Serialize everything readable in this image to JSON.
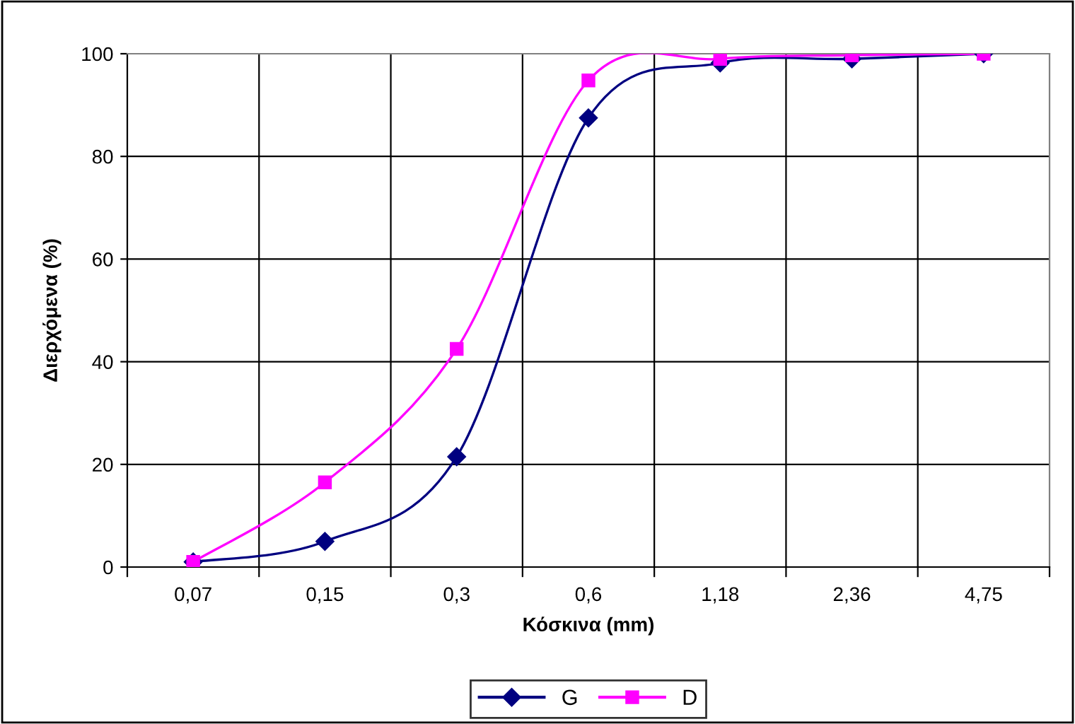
{
  "chart_data": {
    "type": "line",
    "xlabel": "Κόσκινα (mm)",
    "ylabel": "Διερχόμενα (%)",
    "categories": [
      "0,07",
      "0,15",
      "0,3",
      "0,6",
      "1,18",
      "2,36",
      "4,75"
    ],
    "series": [
      {
        "name": "G",
        "color": "#000080",
        "marker": "diamond",
        "values": [
          1,
          5,
          21.5,
          87.5,
          98.2,
          99,
          100
        ]
      },
      {
        "name": "D",
        "color": "#ff00ff",
        "marker": "square",
        "values": [
          1,
          16.5,
          42.5,
          94.8,
          99,
          99.7,
          100
        ]
      }
    ],
    "ylim": [
      0,
      100
    ],
    "yticks": [
      0,
      20,
      40,
      60,
      80,
      100
    ],
    "grid": true,
    "legend": "bottom",
    "line_style": "solid"
  }
}
